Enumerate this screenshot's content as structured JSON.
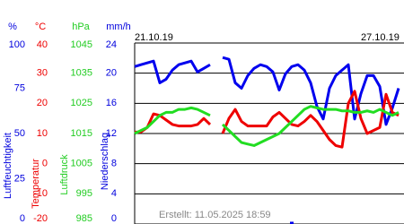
{
  "chart_data": {
    "type": "multi-axis-line",
    "footer": "Erstellt: 11.05.2025 18:59",
    "categories": [
      "21.10.19",
      null,
      null,
      null,
      null,
      null,
      null,
      null,
      null,
      null,
      null,
      null,
      null,
      null,
      null,
      null,
      null,
      null,
      null,
      null,
      null,
      null,
      null,
      null,
      null,
      null,
      null,
      null,
      null,
      null,
      null,
      null,
      null,
      null,
      null,
      null,
      "27.10.19",
      null,
      null,
      null,
      null,
      null,
      null
    ],
    "axes": [
      {
        "unit": "%",
        "title": "Luftfeuchtigkeit",
        "color": "#0000dd",
        "ylim": [
          0,
          100
        ],
        "yticks": [
          0,
          25,
          50,
          75,
          100
        ]
      },
      {
        "unit": "°C",
        "title": "Temperatur",
        "color": "#ee0000",
        "ylim": [
          -20,
          40
        ],
        "yticks": [
          -20,
          -10,
          0,
          10,
          20,
          30,
          40
        ]
      },
      {
        "unit": "hPa",
        "title": "Luftdruck",
        "color": "#22cc22",
        "ylim": [
          985,
          1045
        ],
        "yticks": [
          985,
          995,
          1005,
          1015,
          1025,
          1035,
          1045
        ]
      },
      {
        "unit": "mm/h",
        "title": "Niederschlag",
        "color": "#0000dd",
        "ylim": [
          0,
          24
        ],
        "yticks": [
          0,
          4,
          8,
          12,
          16,
          20,
          24
        ],
        "grid": true
      }
    ],
    "series": [
      {
        "type": "line",
        "axis": 0,
        "color": "#0000ee",
        "values": [
          87,
          88,
          89,
          90,
          78,
          80,
          85,
          88,
          89,
          90,
          84,
          86,
          88,
          null,
          92,
          91,
          78,
          75,
          82,
          86,
          88,
          87,
          84,
          74,
          83,
          87,
          88,
          85,
          78,
          65,
          58,
          75,
          82,
          85,
          88,
          58,
          72,
          82,
          82,
          76,
          55,
          64,
          75
        ]
      },
      {
        "type": "line",
        "axis": 1,
        "color": "#ee0000",
        "values": [
          10.5,
          10.5,
          12,
          16.5,
          16,
          14.5,
          13,
          12.5,
          12.5,
          12.5,
          13,
          15,
          13,
          null,
          10,
          15,
          18,
          14,
          12.5,
          12.5,
          12.5,
          12.5,
          15.5,
          17,
          15,
          13,
          12.5,
          14,
          16,
          14,
          11,
          8,
          6,
          5.5,
          20,
          24,
          15,
          10,
          11,
          12,
          23,
          17,
          16
        ]
      },
      {
        "type": "line",
        "axis": 2,
        "color": "#22dd22",
        "values": [
          1015,
          1016,
          1017,
          1019,
          1021,
          1022,
          1022,
          1023,
          1023,
          1023.5,
          1023,
          1022,
          1021,
          null,
          1018,
          1016,
          1014,
          1012,
          1011.5,
          1011,
          1012,
          1013,
          1014,
          1015,
          1017,
          1019,
          1021,
          1023,
          1024,
          1023.5,
          1023,
          1023,
          1023,
          1022.5,
          1022.5,
          1022,
          1022,
          1022.5,
          1022,
          1023,
          1022,
          1021,
          1022
        ]
      },
      {
        "type": "bar",
        "axis": 3,
        "color": "#0000ee",
        "values": [
          0,
          0,
          0,
          0,
          0,
          0,
          0,
          0,
          0,
          0,
          0,
          0,
          0,
          0,
          0,
          0,
          0,
          0,
          0,
          0,
          0,
          0,
          0,
          0,
          0,
          0.3,
          0,
          0,
          0,
          0,
          0,
          0,
          0,
          0,
          0,
          0,
          0,
          0,
          0,
          0,
          0,
          0,
          0
        ]
      }
    ]
  }
}
